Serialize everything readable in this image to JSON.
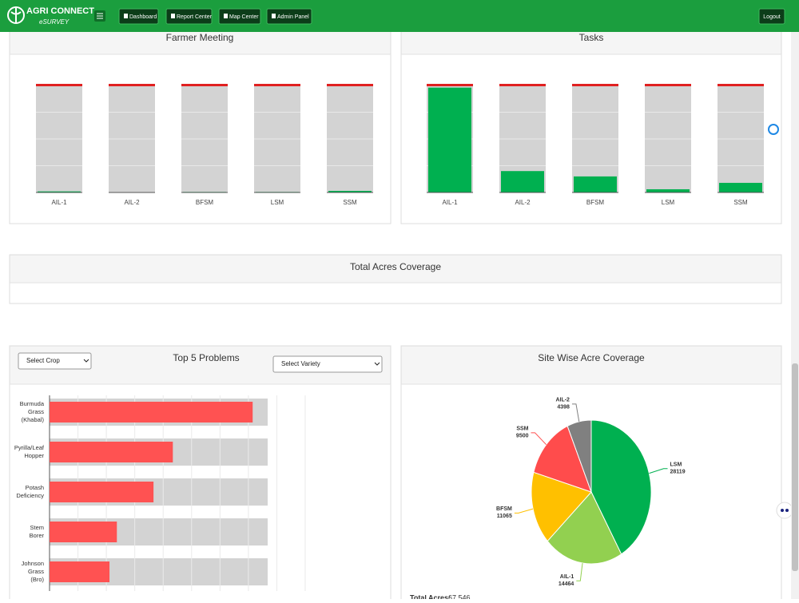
{
  "header": {
    "brand": "AGRI CONNECT",
    "sub": "eSURVEY",
    "nav": [
      "Dashboard",
      "Report Center",
      "Map Center",
      "Admin Panel"
    ],
    "logout": "Logout"
  },
  "panels": {
    "total_acres": {
      "title": "Total Acres Coverage"
    }
  },
  "controls": {
    "crop": "Select Crop",
    "variety": "Select Variety"
  },
  "chart_data": [
    {
      "type": "bar",
      "title": "Farmer Meeting",
      "categories": [
        "AIL-1",
        "AIL-2",
        "BFSM",
        "LSM",
        "SSM"
      ],
      "values": [
        1,
        0,
        0.5,
        0.5,
        1.5
      ],
      "ylim": [
        0,
        100
      ],
      "color": "#00b050"
    },
    {
      "type": "bar",
      "title": "Tasks",
      "categories": [
        "AIL-1",
        "AIL-2",
        "BFSM",
        "LSM",
        "SSM"
      ],
      "values": [
        98,
        20,
        15,
        3,
        9
      ],
      "ylim": [
        0,
        100
      ],
      "color": "#00b050"
    },
    {
      "type": "hbar",
      "title": "Top 5 Problems",
      "categories": [
        [
          "Burmuda",
          "Grass",
          "(Khabal)"
        ],
        [
          "Pyrilla/Leaf",
          "Hopper"
        ],
        [
          "Potash",
          "Deficiency"
        ],
        [
          "Stem",
          "Borer"
        ],
        [
          "Johnson",
          "Grass",
          "(Bro)"
        ]
      ],
      "values": [
        7.15,
        4.34,
        3.66,
        2.37,
        2.11
      ],
      "xlim": [
        0,
        9
      ],
      "color": "#ff5252"
    },
    {
      "type": "pie",
      "title": "Site Wise Acre Coverage",
      "categories": [
        "LSM",
        "AIL-1",
        "BFSM",
        "SSM",
        "AIL-2"
      ],
      "values": [
        28119,
        14464,
        11065,
        9500,
        4398
      ],
      "colors": [
        "#00b050",
        "#92d050",
        "#ffc000",
        "#ff4c4c",
        "#808080"
      ],
      "total_label": "Total Acres:",
      "total_value": "67,546"
    }
  ]
}
